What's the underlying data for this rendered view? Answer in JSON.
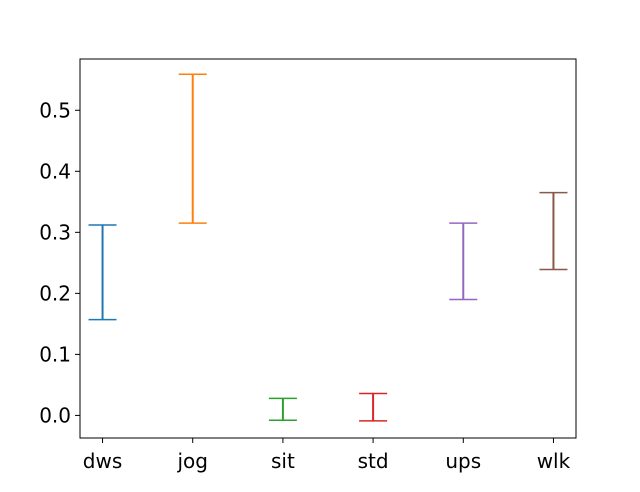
{
  "chart_data": {
    "type": "errorbar",
    "categories": [
      "dws",
      "jog",
      "sit",
      "std",
      "ups",
      "wlk"
    ],
    "series": [
      {
        "category": "dws",
        "low": 0.157,
        "high": 0.312,
        "color": "#1f77b4"
      },
      {
        "category": "jog",
        "low": 0.315,
        "high": 0.559,
        "color": "#ff7f0e"
      },
      {
        "category": "sit",
        "low": -0.008,
        "high": 0.028,
        "color": "#2ca02c"
      },
      {
        "category": "std",
        "low": -0.009,
        "high": 0.036,
        "color": "#d62728"
      },
      {
        "category": "ups",
        "low": 0.19,
        "high": 0.315,
        "color": "#9467bd"
      },
      {
        "category": "wlk",
        "low": 0.239,
        "high": 0.365,
        "color": "#8c564b"
      }
    ],
    "yticks": [
      "0.0",
      "0.1",
      "0.2",
      "0.3",
      "0.4",
      "0.5"
    ],
    "ytick_values": [
      0.0,
      0.1,
      0.2,
      0.3,
      0.4,
      0.5
    ],
    "ylim": [
      -0.037,
      0.584
    ],
    "title": "",
    "xlabel": "",
    "ylabel": "",
    "grid": false,
    "legend": "none"
  }
}
